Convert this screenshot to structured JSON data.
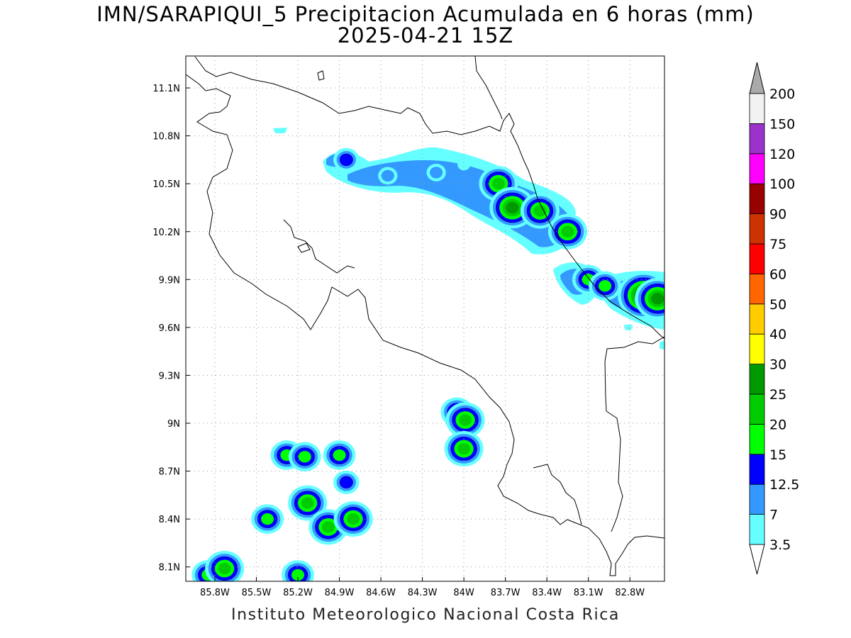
{
  "title": "IMN/SARAPIQUI_5 Precipitacion Acumulada en 6 horas (mm)",
  "subtitle": "2025-04-21 15Z",
  "footer": "Instituto Meteorologico Nacional Costa Rica",
  "map": {
    "lon_range": [
      -86.01,
      -82.55
    ],
    "lat_range": [
      8.01,
      11.3
    ],
    "lon_ticks": [
      -85.8,
      -85.5,
      -85.2,
      -84.9,
      -84.6,
      -84.3,
      -84.0,
      -83.7,
      -83.4,
      -83.1,
      -82.8
    ],
    "lon_tick_labels": [
      "85.8W",
      "85.5W",
      "85.2W",
      "84.9W",
      "84.6W",
      "84.3W",
      "84W",
      "83.7W",
      "83.4W",
      "83.1W",
      "82.8W"
    ],
    "lat_ticks": [
      8.1,
      8.4,
      8.7,
      9.0,
      9.3,
      9.6,
      9.9,
      10.2,
      10.5,
      10.8,
      11.1
    ],
    "lat_tick_labels": [
      "8.1N",
      "8.4N",
      "8.7N",
      "9N",
      "9.3N",
      "9.6N",
      "9.9N",
      "10.2N",
      "10.5N",
      "10.8N",
      "11.1N"
    ],
    "grid": "dotted",
    "coastline_color": "#000000"
  },
  "colorbar": {
    "levels": [
      "3.5",
      "7",
      "12.5",
      "15",
      "20",
      "25",
      "30",
      "40",
      "50",
      "60",
      "75",
      "90",
      "100",
      "120",
      "150",
      "200"
    ],
    "colors": [
      "#66ffff",
      "#3399ff",
      "#0000ff",
      "#00ff00",
      "#00cc00",
      "#009900",
      "#ffff00",
      "#ffcc00",
      "#ff6600",
      "#ff0000",
      "#cc3300",
      "#990000",
      "#ff00ff",
      "#9933cc",
      "#f2f2f2"
    ],
    "under_color": "#ffffff",
    "over_color": "#aaaaaa"
  },
  "precip_cells": [
    {
      "lon": -84.85,
      "lat": 10.65,
      "mm": 12.5
    },
    {
      "lon": -84.55,
      "lat": 10.55,
      "mm": 7
    },
    {
      "lon": -84.2,
      "lat": 10.57,
      "mm": 7
    },
    {
      "lon": -84.0,
      "lat": 10.62,
      "mm": 3.5
    },
    {
      "lon": -83.75,
      "lat": 10.5,
      "mm": 20
    },
    {
      "lon": -83.65,
      "lat": 10.35,
      "mm": 25
    },
    {
      "lon": -83.45,
      "lat": 10.33,
      "mm": 20
    },
    {
      "lon": -83.25,
      "lat": 10.2,
      "mm": 20
    },
    {
      "lon": -83.1,
      "lat": 9.9,
      "mm": 15
    },
    {
      "lon": -82.98,
      "lat": 9.86,
      "mm": 15
    },
    {
      "lon": -82.7,
      "lat": 9.8,
      "mm": 30
    },
    {
      "lon": -82.6,
      "lat": 9.78,
      "mm": 25
    },
    {
      "lon": -84.05,
      "lat": 9.07,
      "mm": 15
    },
    {
      "lon": -83.99,
      "lat": 9.02,
      "mm": 20
    },
    {
      "lon": -84.0,
      "lat": 8.84,
      "mm": 20
    },
    {
      "lon": -85.28,
      "lat": 8.8,
      "mm": 15
    },
    {
      "lon": -85.15,
      "lat": 8.79,
      "mm": 15
    },
    {
      "lon": -84.9,
      "lat": 8.8,
      "mm": 15
    },
    {
      "lon": -84.85,
      "lat": 8.63,
      "mm": 12.5
    },
    {
      "lon": -85.13,
      "lat": 8.5,
      "mm": 20
    },
    {
      "lon": -84.98,
      "lat": 8.35,
      "mm": 20
    },
    {
      "lon": -84.8,
      "lat": 8.4,
      "mm": 20
    },
    {
      "lon": -85.42,
      "lat": 8.4,
      "mm": 15
    },
    {
      "lon": -85.85,
      "lat": 8.05,
      "mm": 15
    },
    {
      "lon": -85.73,
      "lat": 8.09,
      "mm": 20
    },
    {
      "lon": -85.2,
      "lat": 8.05,
      "mm": 15
    }
  ]
}
